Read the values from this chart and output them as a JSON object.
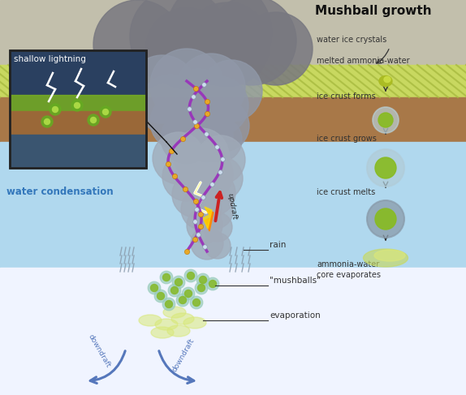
{
  "title": "Mushball growth",
  "bg_color": "#ffffff",
  "labels": {
    "shallow_lightning": "shallow lightning",
    "water_condensation": "water condensation",
    "updraft": "updraft",
    "rain": "rain",
    "mushballs": "\"mushballs\"",
    "evaporation": "evaporation",
    "downdraft1": "downdraft",
    "downdraft2": "downdraft",
    "water_ice_crystals": "water ice crystals",
    "melted_ammonia": "melted ammonia-water",
    "ice_crust_forms": "ice crust forms",
    "ice_crust_grows": "ice crust grows",
    "ice_crust_melts": "ice crust melts",
    "ammonia_water": "ammonia-water\ncore evaporates"
  },
  "purple_color": "#9933bb",
  "orange_dot": "#e8a020",
  "arrow_blue": "#5577bb",
  "arrow_red": "#cc2222",
  "text_color": "#333333",
  "water_cond_text": "#3377bb"
}
